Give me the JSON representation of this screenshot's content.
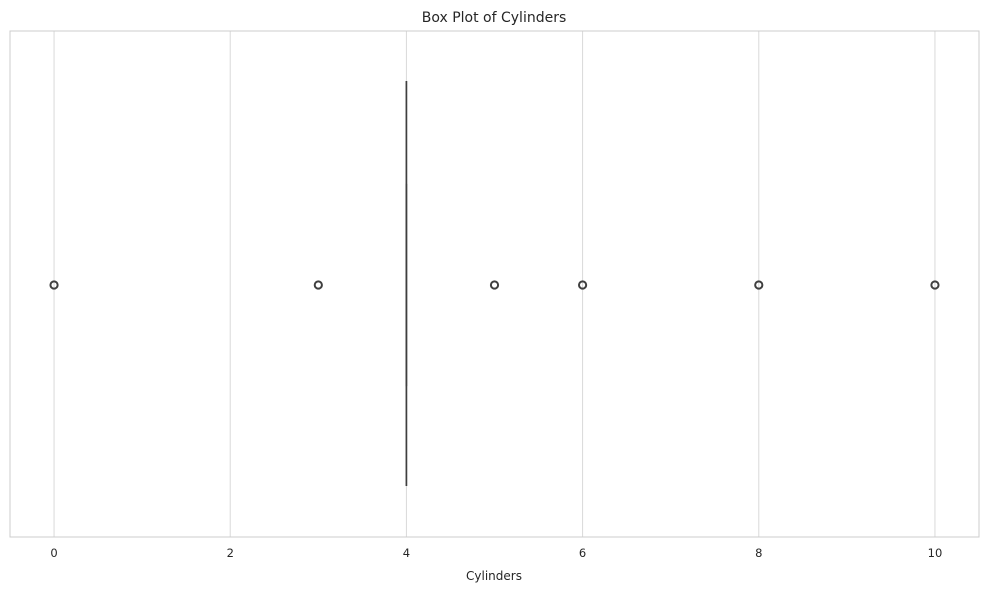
{
  "chart_data": {
    "type": "box",
    "title": "Box Plot of Cylinders",
    "xlabel": "Cylinders",
    "ylabel": "",
    "orientation": "horizontal",
    "xlim": [
      -0.5,
      10.5
    ],
    "xticks": [
      0,
      2,
      4,
      6,
      8,
      10
    ],
    "xtick_labels": [
      "0",
      "2",
      "4",
      "6",
      "8",
      "10"
    ],
    "grid": true,
    "box": {
      "min_whisker": 4,
      "q1": 4,
      "median": 4,
      "q3": 4,
      "max_whisker": 4
    },
    "outliers": [
      0,
      3,
      5,
      6,
      8,
      10
    ],
    "colors": {
      "box_line": "#3f3f3f",
      "grid": "#d9d9d9",
      "axes_edge": "#cccccc",
      "text": "#262626"
    }
  }
}
